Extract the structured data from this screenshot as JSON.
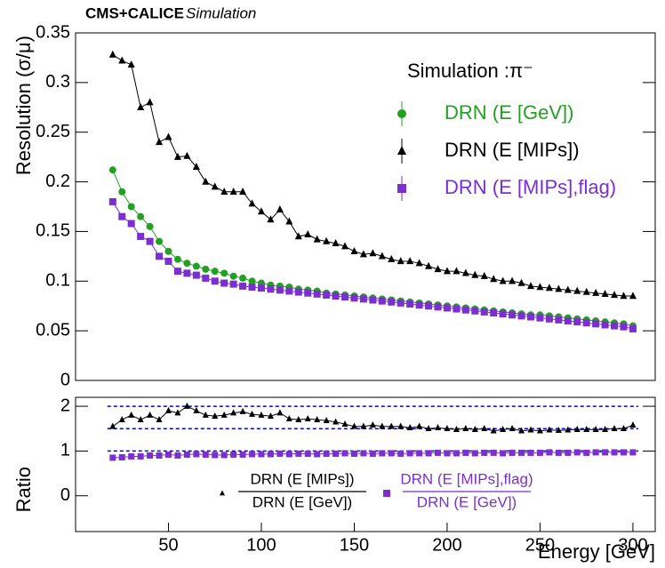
{
  "chart_data": [
    {
      "type": "line",
      "title": "CMS+CALICE",
      "subtitle": "Simulation",
      "ylabel": "Resolution (σ/μ)",
      "legend_title": "Simulation :π⁻",
      "legend": "upper right",
      "xlim": [
        0,
        312
      ],
      "ylim": [
        0,
        0.35
      ],
      "yticks": [
        0,
        0.05,
        0.1,
        0.15,
        0.2,
        0.25,
        0.3,
        0.35
      ],
      "x": [
        20,
        25,
        30,
        35,
        40,
        45,
        50,
        55,
        60,
        65,
        70,
        75,
        80,
        85,
        90,
        95,
        100,
        105,
        110,
        115,
        120,
        125,
        130,
        135,
        140,
        145,
        150,
        155,
        160,
        165,
        170,
        175,
        180,
        185,
        190,
        195,
        200,
        205,
        210,
        215,
        220,
        225,
        230,
        235,
        240,
        245,
        250,
        255,
        260,
        265,
        270,
        275,
        280,
        285,
        290,
        295,
        300
      ],
      "series": [
        {
          "name": "DRN (E [GeV])",
          "color": "#22a022",
          "marker": "circle",
          "values": [
            0.212,
            0.19,
            0.175,
            0.165,
            0.155,
            0.14,
            0.13,
            0.122,
            0.118,
            0.115,
            0.112,
            0.11,
            0.108,
            0.105,
            0.103,
            0.1,
            0.098,
            0.096,
            0.095,
            0.094,
            0.092,
            0.091,
            0.09,
            0.088,
            0.087,
            0.086,
            0.085,
            0.084,
            0.083,
            0.082,
            0.081,
            0.08,
            0.079,
            0.078,
            0.077,
            0.076,
            0.075,
            0.074,
            0.073,
            0.072,
            0.071,
            0.07,
            0.069,
            0.068,
            0.067,
            0.066,
            0.066,
            0.065,
            0.064,
            0.063,
            0.062,
            0.061,
            0.06,
            0.059,
            0.058,
            0.057,
            0.055
          ]
        },
        {
          "name": "DRN (E [MIPs])",
          "color": "#000000",
          "marker": "triangle",
          "values": [
            0.328,
            0.322,
            0.318,
            0.275,
            0.28,
            0.24,
            0.245,
            0.225,
            0.226,
            0.215,
            0.2,
            0.195,
            0.19,
            0.19,
            0.19,
            0.178,
            0.17,
            0.162,
            0.172,
            0.16,
            0.145,
            0.147,
            0.142,
            0.14,
            0.138,
            0.135,
            0.13,
            0.127,
            0.128,
            0.125,
            0.122,
            0.12,
            0.12,
            0.118,
            0.115,
            0.112,
            0.11,
            0.11,
            0.108,
            0.106,
            0.105,
            0.102,
            0.1,
            0.1,
            0.098,
            0.095,
            0.094,
            0.093,
            0.092,
            0.091,
            0.09,
            0.089,
            0.088,
            0.087,
            0.086,
            0.085,
            0.085
          ]
        },
        {
          "name": "DRN (E [MIPs],flag)",
          "color": "#7b2fcf",
          "marker": "square",
          "values": [
            0.18,
            0.165,
            0.158,
            0.145,
            0.14,
            0.125,
            0.12,
            0.11,
            0.108,
            0.106,
            0.103,
            0.1,
            0.098,
            0.097,
            0.095,
            0.094,
            0.093,
            0.092,
            0.091,
            0.09,
            0.089,
            0.088,
            0.087,
            0.086,
            0.085,
            0.084,
            0.083,
            0.082,
            0.081,
            0.08,
            0.079,
            0.078,
            0.077,
            0.076,
            0.075,
            0.074,
            0.073,
            0.072,
            0.071,
            0.07,
            0.069,
            0.068,
            0.067,
            0.066,
            0.065,
            0.064,
            0.063,
            0.062,
            0.061,
            0.06,
            0.059,
            0.058,
            0.057,
            0.056,
            0.055,
            0.054,
            0.052
          ]
        }
      ]
    },
    {
      "type": "line",
      "ylabel": "Ratio",
      "xlabel": "Energy [GeV]",
      "xlim": [
        0,
        312
      ],
      "xticks": [
        50,
        100,
        150,
        200,
        250,
        300
      ],
      "ylim": [
        -0.8,
        2.2
      ],
      "yticks": [
        0,
        1,
        2
      ],
      "reference_lines": [
        2,
        1.5,
        1
      ],
      "reference_color": "#0000dd",
      "x": [
        20,
        25,
        30,
        35,
        40,
        45,
        50,
        55,
        60,
        65,
        70,
        75,
        80,
        85,
        90,
        95,
        100,
        105,
        110,
        115,
        120,
        125,
        130,
        135,
        140,
        145,
        150,
        155,
        160,
        165,
        170,
        175,
        180,
        185,
        190,
        195,
        200,
        205,
        210,
        215,
        220,
        225,
        230,
        235,
        240,
        245,
        250,
        255,
        260,
        265,
        270,
        275,
        280,
        285,
        290,
        295,
        300
      ],
      "series": [
        {
          "numerator": "DRN (E [MIPs])",
          "denominator": "DRN (E [GeV])",
          "color": "#000000",
          "marker": "triangle",
          "values": [
            1.55,
            1.7,
            1.8,
            1.7,
            1.8,
            1.7,
            1.9,
            1.85,
            2.0,
            1.9,
            1.8,
            1.78,
            1.8,
            1.85,
            1.88,
            1.82,
            1.8,
            1.78,
            1.85,
            1.72,
            1.7,
            1.72,
            1.7,
            1.68,
            1.65,
            1.6,
            1.55,
            1.55,
            1.58,
            1.55,
            1.55,
            1.55,
            1.52,
            1.55,
            1.5,
            1.52,
            1.5,
            1.48,
            1.5,
            1.48,
            1.5,
            1.45,
            1.48,
            1.5,
            1.45,
            1.47,
            1.45,
            1.47,
            1.46,
            1.47,
            1.48,
            1.48,
            1.48,
            1.48,
            1.5,
            1.5,
            1.58
          ]
        },
        {
          "numerator": "DRN (E [MIPs],flag)",
          "denominator": "DRN (E [GeV])",
          "color": "#7b2fcf",
          "marker": "square",
          "values": [
            0.85,
            0.86,
            0.88,
            0.88,
            0.9,
            0.9,
            0.92,
            0.9,
            0.92,
            0.93,
            0.92,
            0.91,
            0.91,
            0.92,
            0.92,
            0.93,
            0.93,
            0.93,
            0.94,
            0.93,
            0.94,
            0.94,
            0.93,
            0.94,
            0.94,
            0.95,
            0.94,
            0.95,
            0.94,
            0.95,
            0.95,
            0.94,
            0.95,
            0.95,
            0.95,
            0.96,
            0.95,
            0.95,
            0.96,
            0.95,
            0.96,
            0.96,
            0.95,
            0.96,
            0.96,
            0.96,
            0.96,
            0.97,
            0.96,
            0.96,
            0.97,
            0.96,
            0.97,
            0.97,
            0.97,
            0.97,
            0.97
          ]
        }
      ]
    }
  ]
}
